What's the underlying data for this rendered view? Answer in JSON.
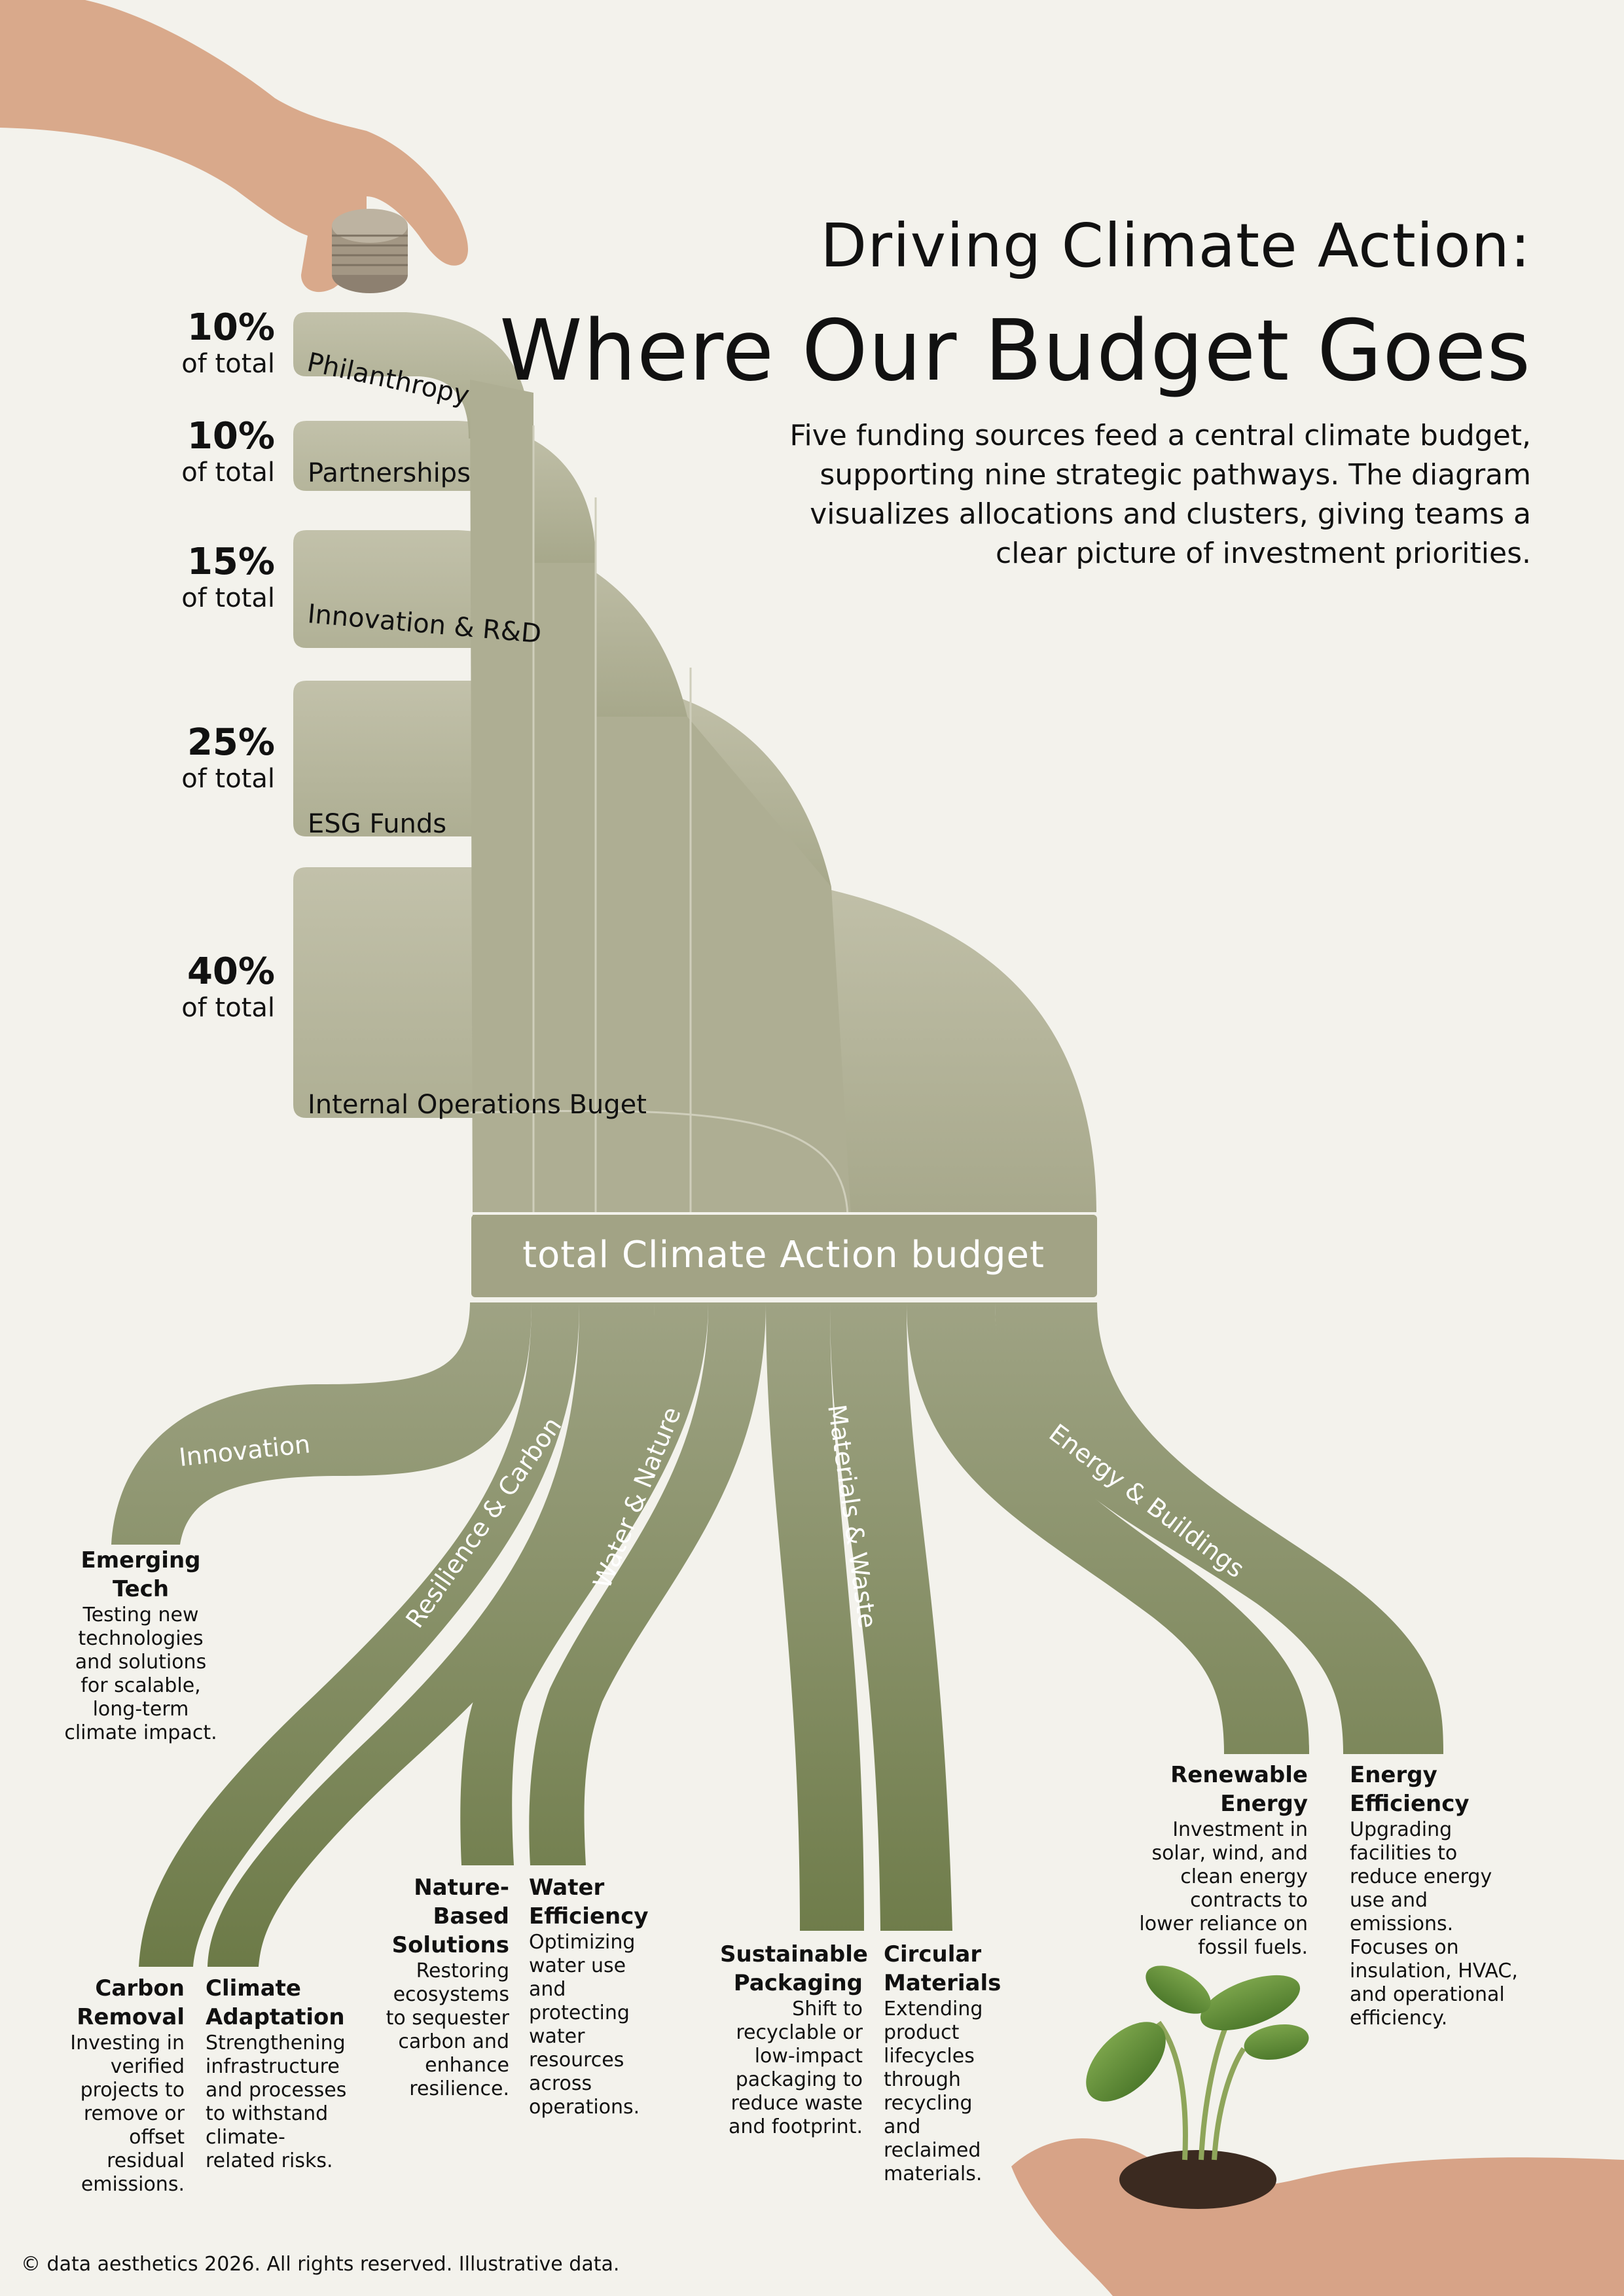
{
  "header": {
    "title_line1": "Driving Climate Action:",
    "title_line2": "Where Our Budget Goes",
    "subtitle": "Five funding sources feed a central climate budget, supporting nine strategic pathways. The diagram visualizes allocations and clusters, giving teams a clear picture of investment priorities."
  },
  "sources": [
    {
      "name": "Philanthropy",
      "percent": "10%",
      "percent_caption": "of total",
      "share": 10
    },
    {
      "name": "Partnerships",
      "percent": "10%",
      "percent_caption": "of total",
      "share": 10
    },
    {
      "name": "Innovation & R&D",
      "percent": "15%",
      "percent_caption": "of total",
      "share": 15
    },
    {
      "name": "ESG Funds",
      "percent": "25%",
      "percent_caption": "of total",
      "share": 25
    },
    {
      "name": "Internal Operations Buget",
      "percent": "40%",
      "percent_caption": "of total",
      "share": 40
    }
  ],
  "budget_node": {
    "label": "total Climate Action budget"
  },
  "clusters": [
    {
      "name": "Innovation"
    },
    {
      "name": "Resilience & Carbon"
    },
    {
      "name": "Water & Nature"
    },
    {
      "name": "Materials & Waste"
    },
    {
      "name": "Energy & Buildings"
    }
  ],
  "outcomes": [
    {
      "name": "Emerging Tech",
      "description": "Testing new technologies and solutions for scalable, long-term climate impact."
    },
    {
      "name": "Carbon Removal",
      "description": "Investing in verified projects to remove or offset residual emissions."
    },
    {
      "name": "Climate Adaptation",
      "description": "Strengthening infrastructure and processes to withstand climate-related risks."
    },
    {
      "name": "Nature-Based Solutions",
      "description": "Restoring ecosystems to sequester carbon and enhance resilience."
    },
    {
      "name": "Water Efficiency",
      "description": "Optimizing water use and protecting water resources across operations."
    },
    {
      "name": "Sustainable Packaging",
      "description": "Shift to recyclable or low-impact packaging to reduce waste and footprint."
    },
    {
      "name": "Circular Materials",
      "description": "Extending product lifecycles through recycling and reclaimed materials."
    },
    {
      "name": "Renewable Energy",
      "description": "Investment in solar, wind, and clean energy contracts to lower reliance on fossil fuels."
    },
    {
      "name": "Energy Efficiency",
      "description": "Upgrading facilities to reduce energy use and emissions. Focuses on insulation, HVAC, and operational efficiency."
    }
  ],
  "footer": {
    "text": "© data aesthetics 2026. All rights reserved. Illustrative data."
  },
  "colors": {
    "background": "#f3f2ec",
    "source_flow": "#b7b69c",
    "outcome_flow_top": "#9fa384",
    "outcome_flow_bottom": "#6f7b4a"
  },
  "icons": [
    "hand-with-coins-icon",
    "sprout-in-hand-icon"
  ]
}
